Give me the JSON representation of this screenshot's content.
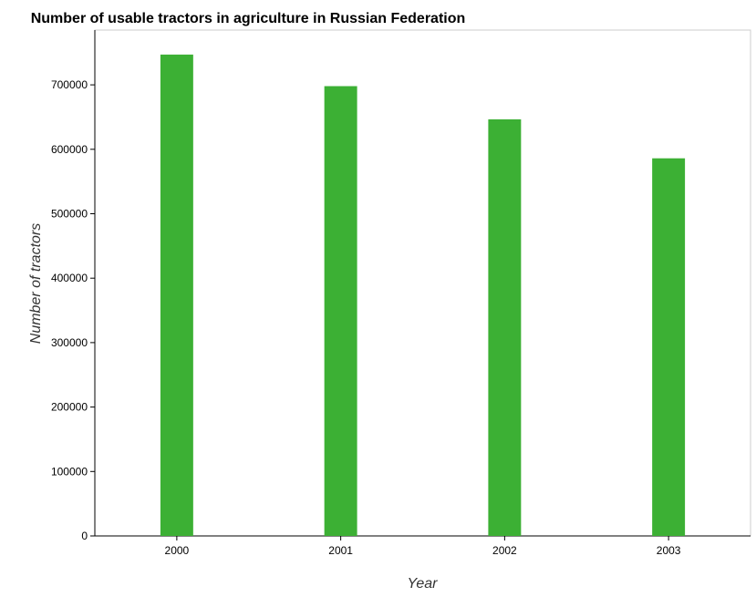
{
  "chart_data": {
    "type": "bar",
    "title": "Number of usable tractors in agriculture in Russian Federation",
    "xlabel": "Year",
    "ylabel": "Number of tractors",
    "categories": [
      "2000",
      "2001",
      "2002",
      "2003"
    ],
    "values": [
      747000,
      698000,
      646500,
      586000
    ],
    "yticks": [
      0,
      100000,
      200000,
      300000,
      400000,
      500000,
      600000,
      700000
    ],
    "ytick_labels": [
      "0",
      "100000",
      "200000",
      "300000",
      "400000",
      "500000",
      "600000",
      "700000"
    ],
    "ylim": [
      0,
      785000
    ],
    "bar_color": "#3cb034",
    "grid": false,
    "legend": "none"
  }
}
